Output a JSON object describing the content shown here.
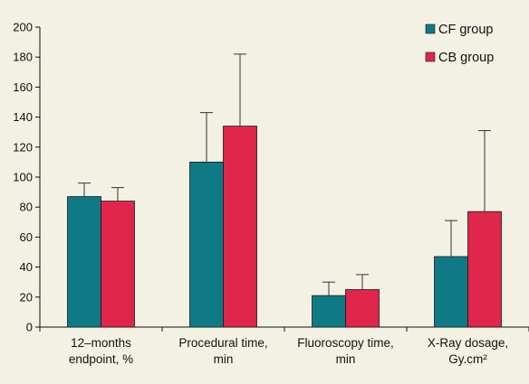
{
  "chart_data": {
    "type": "bar",
    "title": "",
    "xlabel": "",
    "ylabel": "",
    "ylim": [
      0,
      200
    ],
    "yticks": [
      0,
      20,
      40,
      60,
      80,
      100,
      120,
      140,
      160,
      180,
      200
    ],
    "categories": [
      [
        "12–months",
        "endpoint, %"
      ],
      [
        "Procedural time,",
        "min"
      ],
      [
        "Fluoroscopy time,",
        "min"
      ],
      [
        "X-Ray dosage,",
        "Gy.cm²"
      ]
    ],
    "series": [
      {
        "name": "CF group",
        "color": "#0f7a86",
        "values": [
          87,
          110,
          21,
          47
        ],
        "error": [
          9,
          33,
          9,
          24
        ]
      },
      {
        "name": "CB group",
        "color": "#e0264a",
        "values": [
          84,
          134,
          25,
          77
        ],
        "error": [
          9,
          48,
          10,
          54
        ]
      }
    ],
    "grid": false,
    "legend_position": "top-right",
    "error_bars": "upper"
  }
}
